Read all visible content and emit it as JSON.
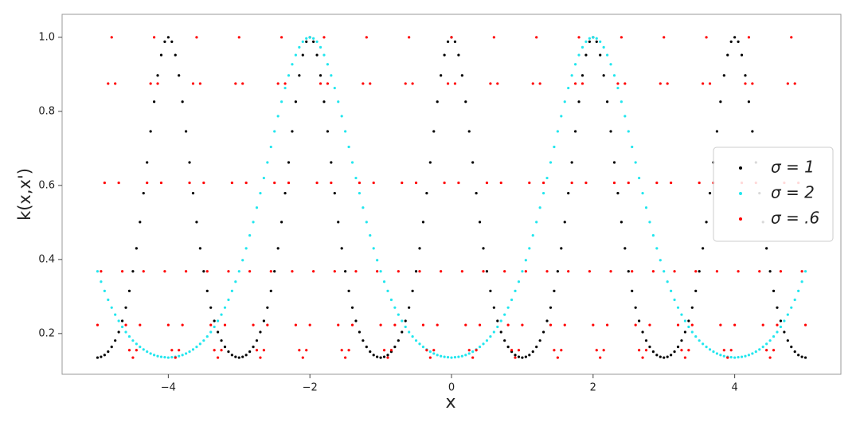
{
  "chart_data": {
    "type": "scatter",
    "xlabel": "x",
    "ylabel": "k(x,x')",
    "xlim": [
      -5.5,
      5.5
    ],
    "ylim": [
      0.09,
      1.062
    ],
    "xticks": [
      {
        "value": -4,
        "label": "−4"
      },
      {
        "value": -2,
        "label": "−2"
      },
      0,
      2,
      4
    ],
    "yticks": [
      0.2,
      0.4,
      0.6,
      0.8,
      {
        "value": 1,
        "label": "1.0"
      }
    ],
    "legend": "center right",
    "x": [
      -5,
      -4.95,
      -4.9,
      -4.85,
      -4.8,
      -4.75,
      -4.7,
      -4.65,
      -4.6,
      -4.55,
      -4.5,
      -4.45,
      -4.4,
      -4.35,
      -4.3,
      -4.25,
      -4.2,
      -4.15,
      -4.1,
      -4.05,
      -4,
      -3.95,
      -3.9,
      -3.85,
      -3.8,
      -3.75,
      -3.7,
      -3.65,
      -3.6,
      -3.55,
      -3.5,
      -3.45,
      -3.4,
      -3.35,
      -3.3,
      -3.25,
      -3.2,
      -3.15,
      -3.1,
      -3.05,
      -3,
      -2.95,
      -2.9,
      -2.85,
      -2.8,
      -2.75,
      -2.7,
      -2.65,
      -2.6,
      -2.55,
      -2.5,
      -2.45,
      -2.4,
      -2.35,
      -2.3,
      -2.25,
      -2.2,
      -2.15,
      -2.1,
      -2.05,
      -2,
      -1.95,
      -1.9,
      -1.85,
      -1.8,
      -1.75,
      -1.7,
      -1.65,
      -1.6,
      -1.55,
      -1.5,
      -1.45,
      -1.4,
      -1.35,
      -1.3,
      -1.25,
      -1.2,
      -1.15,
      -1.1,
      -1.05,
      -1,
      -0.95,
      -0.9,
      -0.85,
      -0.8,
      -0.75,
      -0.7,
      -0.65,
      -0.6,
      -0.55,
      -0.5,
      -0.45,
      -0.4,
      -0.35,
      -0.3,
      -0.25,
      -0.2,
      -0.15,
      -0.1,
      -0.05,
      0,
      0.05,
      0.1,
      0.15,
      0.2,
      0.25,
      0.3,
      0.35,
      0.4,
      0.45,
      0.5,
      0.55,
      0.6,
      0.65,
      0.7,
      0.75,
      0.8,
      0.85,
      0.9,
      0.95,
      1,
      1.05,
      1.1,
      1.15,
      1.2,
      1.25,
      1.3,
      1.35,
      1.4,
      1.45,
      1.5,
      1.55,
      1.6,
      1.65,
      1.7,
      1.75,
      1.8,
      1.85,
      1.9,
      1.95,
      2,
      2.05,
      2.1,
      2.15,
      2.2,
      2.25,
      2.3,
      2.35,
      2.4,
      2.45,
      2.5,
      2.55,
      2.6,
      2.65,
      2.7,
      2.75,
      2.8,
      2.85,
      2.9,
      2.95,
      3,
      3.05,
      3.1,
      3.15,
      3.2,
      3.25,
      3.3,
      3.35,
      3.4,
      3.45,
      3.5,
      3.55,
      3.6,
      3.65,
      3.7,
      3.75,
      3.8,
      3.85,
      3.9,
      3.95,
      4,
      4.05,
      4.1,
      4.15,
      4.2,
      4.25,
      4.3,
      4.35,
      4.4,
      4.45,
      4.5,
      4.55,
      4.6,
      4.65,
      4.7,
      4.75,
      4.8,
      4.85,
      4.9,
      4.95,
      5
    ],
    "series": [
      {
        "name": "σ = 1",
        "color": "#000000",
        "values": [
          0.135,
          0.137,
          0.142,
          0.151,
          0.164,
          0.181,
          0.204,
          0.234,
          0.27,
          0.315,
          0.368,
          0.43,
          0.501,
          0.579,
          0.662,
          0.746,
          0.826,
          0.897,
          0.952,
          0.988,
          1,
          0.988,
          0.952,
          0.897,
          0.826,
          0.746,
          0.662,
          0.579,
          0.501,
          0.43,
          0.368,
          0.315,
          0.27,
          0.234,
          0.204,
          0.181,
          0.164,
          0.151,
          0.142,
          0.137,
          0.135,
          0.137,
          0.142,
          0.151,
          0.164,
          0.181,
          0.204,
          0.234,
          0.27,
          0.315,
          0.368,
          0.43,
          0.501,
          0.579,
          0.662,
          0.746,
          0.826,
          0.897,
          0.952,
          0.988,
          1,
          0.988,
          0.952,
          0.897,
          0.826,
          0.746,
          0.662,
          0.579,
          0.501,
          0.43,
          0.368,
          0.315,
          0.27,
          0.234,
          0.204,
          0.181,
          0.164,
          0.151,
          0.142,
          0.137,
          0.135,
          0.137,
          0.142,
          0.151,
          0.164,
          0.181,
          0.204,
          0.234,
          0.27,
          0.315,
          0.368,
          0.43,
          0.501,
          0.579,
          0.662,
          0.746,
          0.826,
          0.897,
          0.952,
          0.988,
          1,
          0.988,
          0.952,
          0.897,
          0.826,
          0.746,
          0.662,
          0.579,
          0.501,
          0.43,
          0.368,
          0.315,
          0.27,
          0.234,
          0.204,
          0.181,
          0.164,
          0.151,
          0.142,
          0.137,
          0.135,
          0.137,
          0.142,
          0.151,
          0.164,
          0.181,
          0.204,
          0.234,
          0.27,
          0.315,
          0.368,
          0.43,
          0.501,
          0.579,
          0.662,
          0.746,
          0.826,
          0.897,
          0.952,
          0.988,
          1,
          0.988,
          0.952,
          0.897,
          0.826,
          0.746,
          0.662,
          0.579,
          0.501,
          0.43,
          0.368,
          0.315,
          0.27,
          0.234,
          0.204,
          0.181,
          0.164,
          0.151,
          0.142,
          0.137,
          0.135,
          0.137,
          0.142,
          0.151,
          0.164,
          0.181,
          0.204,
          0.234,
          0.27,
          0.315,
          0.368,
          0.43,
          0.501,
          0.579,
          0.662,
          0.746,
          0.826,
          0.897,
          0.952,
          0.988,
          1,
          0.988,
          0.952,
          0.897,
          0.826,
          0.746,
          0.662,
          0.579,
          0.501,
          0.43,
          0.368,
          0.315,
          0.27,
          0.234,
          0.204,
          0.181,
          0.164,
          0.151,
          0.142,
          0.137,
          0.135
        ]
      },
      {
        "name": "σ = 2",
        "color": "#22e6ee",
        "values": [
          0.368,
          0.34,
          0.315,
          0.291,
          0.27,
          0.251,
          0.234,
          0.218,
          0.204,
          0.192,
          0.181,
          0.172,
          0.164,
          0.157,
          0.151,
          0.146,
          0.142,
          0.139,
          0.137,
          0.136,
          0.135,
          0.136,
          0.137,
          0.139,
          0.142,
          0.146,
          0.151,
          0.157,
          0.164,
          0.172,
          0.181,
          0.192,
          0.204,
          0.218,
          0.234,
          0.251,
          0.27,
          0.291,
          0.315,
          0.34,
          0.368,
          0.398,
          0.43,
          0.465,
          0.501,
          0.54,
          0.579,
          0.62,
          0.662,
          0.704,
          0.746,
          0.787,
          0.826,
          0.863,
          0.897,
          0.927,
          0.952,
          0.973,
          0.988,
          0.997,
          1,
          0.997,
          0.988,
          0.973,
          0.952,
          0.927,
          0.897,
          0.863,
          0.826,
          0.787,
          0.746,
          0.704,
          0.662,
          0.62,
          0.579,
          0.54,
          0.501,
          0.465,
          0.43,
          0.398,
          0.368,
          0.34,
          0.315,
          0.291,
          0.27,
          0.251,
          0.234,
          0.218,
          0.204,
          0.192,
          0.181,
          0.172,
          0.164,
          0.157,
          0.151,
          0.146,
          0.142,
          0.139,
          0.137,
          0.136,
          0.135,
          0.136,
          0.137,
          0.139,
          0.142,
          0.146,
          0.151,
          0.157,
          0.164,
          0.172,
          0.181,
          0.192,
          0.204,
          0.218,
          0.234,
          0.251,
          0.27,
          0.291,
          0.315,
          0.34,
          0.368,
          0.398,
          0.43,
          0.465,
          0.501,
          0.54,
          0.579,
          0.62,
          0.662,
          0.704,
          0.746,
          0.787,
          0.826,
          0.863,
          0.897,
          0.927,
          0.952,
          0.973,
          0.988,
          0.997,
          1,
          0.997,
          0.988,
          0.973,
          0.952,
          0.927,
          0.897,
          0.863,
          0.826,
          0.787,
          0.746,
          0.704,
          0.662,
          0.62,
          0.579,
          0.54,
          0.501,
          0.465,
          0.43,
          0.398,
          0.368,
          0.34,
          0.315,
          0.291,
          0.27,
          0.251,
          0.234,
          0.218,
          0.204,
          0.192,
          0.181,
          0.172,
          0.164,
          0.157,
          0.151,
          0.146,
          0.142,
          0.139,
          0.137,
          0.136,
          0.135,
          0.136,
          0.137,
          0.139,
          0.142,
          0.146,
          0.151,
          0.157,
          0.164,
          0.172,
          0.181,
          0.192,
          0.204,
          0.218,
          0.234,
          0.251,
          0.27,
          0.291,
          0.315,
          0.34,
          0.368
        ]
      },
      {
        "name": "σ = .6",
        "color": "#ff0000",
        "values": [
          0.223,
          0.368,
          0.607,
          0.875,
          1,
          0.875,
          0.607,
          0.368,
          0.223,
          0.155,
          0.135,
          0.155,
          0.223,
          0.368,
          0.607,
          0.875,
          1,
          0.875,
          0.607,
          0.368,
          0.223,
          0.155,
          0.135,
          0.155,
          0.223,
          0.368,
          0.607,
          0.875,
          1,
          0.875,
          0.607,
          0.368,
          0.223,
          0.155,
          0.135,
          0.155,
          0.223,
          0.368,
          0.607,
          0.875,
          1,
          0.875,
          0.607,
          0.368,
          0.223,
          0.155,
          0.135,
          0.155,
          0.223,
          0.368,
          0.607,
          0.875,
          1,
          0.875,
          0.607,
          0.368,
          0.223,
          0.155,
          0.135,
          0.155,
          0.223,
          0.368,
          0.607,
          0.875,
          1,
          0.875,
          0.607,
          0.368,
          0.223,
          0.155,
          0.135,
          0.155,
          0.223,
          0.368,
          0.607,
          0.875,
          1,
          0.875,
          0.607,
          0.368,
          0.223,
          0.155,
          0.135,
          0.155,
          0.223,
          0.368,
          0.607,
          0.875,
          1,
          0.875,
          0.607,
          0.368,
          0.223,
          0.155,
          0.135,
          0.155,
          0.223,
          0.368,
          0.607,
          0.875,
          1,
          0.875,
          0.607,
          0.368,
          0.223,
          0.155,
          0.135,
          0.155,
          0.223,
          0.368,
          0.607,
          0.875,
          1,
          0.875,
          0.607,
          0.368,
          0.223,
          0.155,
          0.135,
          0.155,
          0.223,
          0.368,
          0.607,
          0.875,
          1,
          0.875,
          0.607,
          0.368,
          0.223,
          0.155,
          0.135,
          0.155,
          0.223,
          0.368,
          0.607,
          0.875,
          1,
          0.875,
          0.607,
          0.368,
          0.223,
          0.155,
          0.135,
          0.155,
          0.223,
          0.368,
          0.607,
          0.875,
          1,
          0.875,
          0.607,
          0.368,
          0.223,
          0.155,
          0.135,
          0.155,
          0.223,
          0.368,
          0.607,
          0.875,
          1,
          0.875,
          0.607,
          0.368,
          0.223,
          0.155,
          0.135,
          0.155,
          0.223,
          0.368,
          0.607,
          0.875,
          1,
          0.875,
          0.607,
          0.368,
          0.223,
          0.155,
          0.135,
          0.155,
          0.223,
          0.368,
          0.607,
          0.875,
          1,
          0.875,
          0.607,
          0.368,
          0.223,
          0.155,
          0.135,
          0.155,
          0.223,
          0.368,
          0.607,
          0.875,
          1,
          0.875,
          0.607,
          0.368,
          0.223
        ]
      }
    ]
  }
}
